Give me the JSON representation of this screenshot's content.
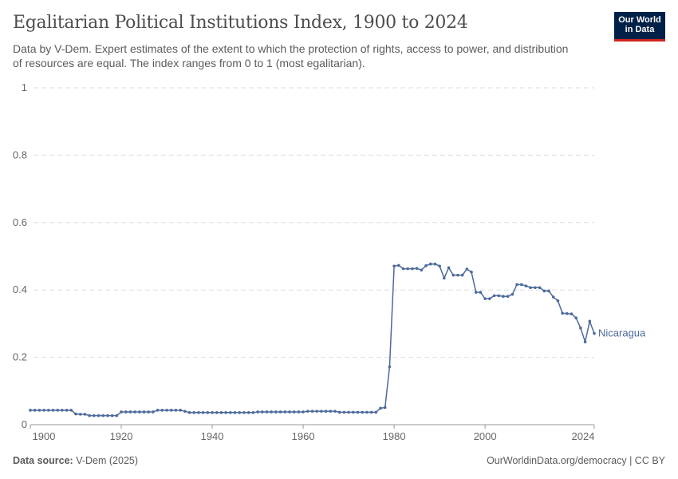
{
  "header": {
    "title": "Egalitarian Political Institutions Index, 1900 to 2024",
    "subtitle": "Data by V-Dem. Expert estimates of the extent to which the protection of rights, access to power, and distribution of resources are equal. The index ranges from 0 to 1 (most egalitarian).",
    "logo_text": "Our World in Data"
  },
  "footer": {
    "source_label": "Data source:",
    "source_value": "V-Dem (2025)",
    "credit": "OurWorldinData.org/democracy | CC BY"
  },
  "colors": {
    "series": "#4c6a9c",
    "grid": "#dddddd",
    "logo_bg": "#002147",
    "logo_accent": "#ce261e"
  },
  "chart_data": {
    "type": "line",
    "title": "Egalitarian Political Institutions Index, 1900 to 2024",
    "xlim": [
      1900,
      2024
    ],
    "ylim": [
      0,
      1
    ],
    "grid": "horizontal dashed",
    "x_ticks": [
      "1900",
      "1920",
      "1940",
      "1960",
      "1980",
      "2000",
      "2024"
    ],
    "y_ticks": [
      "0",
      "0.2",
      "0.4",
      "0.6",
      "0.8",
      "1"
    ],
    "series": [
      {
        "name": "Nicaragua",
        "start_year": 1900,
        "values": [
          0.043,
          0.043,
          0.043,
          0.043,
          0.043,
          0.043,
          0.043,
          0.043,
          0.043,
          0.043,
          0.032,
          0.031,
          0.031,
          0.027,
          0.027,
          0.027,
          0.027,
          0.027,
          0.027,
          0.027,
          0.038,
          0.038,
          0.038,
          0.038,
          0.038,
          0.038,
          0.038,
          0.038,
          0.043,
          0.043,
          0.043,
          0.043,
          0.043,
          0.043,
          0.04,
          0.036,
          0.036,
          0.036,
          0.036,
          0.036,
          0.036,
          0.036,
          0.036,
          0.036,
          0.036,
          0.036,
          0.036,
          0.036,
          0.036,
          0.036,
          0.038,
          0.038,
          0.038,
          0.038,
          0.038,
          0.038,
          0.038,
          0.038,
          0.038,
          0.038,
          0.038,
          0.04,
          0.04,
          0.04,
          0.04,
          0.04,
          0.04,
          0.04,
          0.037,
          0.037,
          0.037,
          0.037,
          0.037,
          0.037,
          0.037,
          0.037,
          0.037,
          0.049,
          0.051,
          0.172,
          0.471,
          0.473,
          0.463,
          0.463,
          0.463,
          0.464,
          0.459,
          0.472,
          0.477,
          0.477,
          0.471,
          0.435,
          0.466,
          0.444,
          0.444,
          0.444,
          0.462,
          0.453,
          0.393,
          0.393,
          0.374,
          0.374,
          0.383,
          0.383,
          0.381,
          0.381,
          0.387,
          0.416,
          0.416,
          0.412,
          0.407,
          0.407,
          0.407,
          0.397,
          0.397,
          0.379,
          0.368,
          0.331,
          0.33,
          0.329,
          0.317,
          0.287,
          0.246,
          0.307,
          0.271
        ]
      }
    ]
  }
}
